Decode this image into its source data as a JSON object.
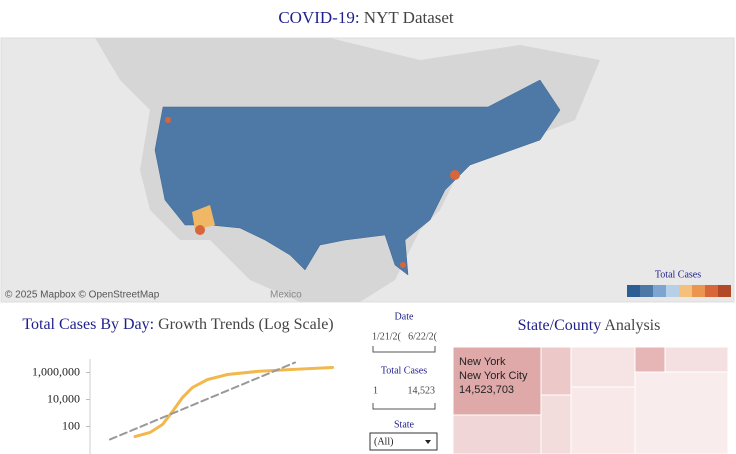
{
  "title": {
    "highlight": "COVID-19:",
    "rest": "NYT Dataset"
  },
  "map": {
    "attribution": "© 2025 Mapbox © OpenStreetMap",
    "place_label": "Mexico",
    "legend_title": "Total Cases"
  },
  "chart_data": {
    "type": "line",
    "title_highlight": "Total Cases By Day:",
    "title_rest": "Growth Trends (Log Scale)",
    "log_scale": true,
    "xlim": [
      0,
      100
    ],
    "ylim": [
      10,
      10000000
    ],
    "yticks": [
      {
        "value": 100,
        "label": "100"
      },
      {
        "value": 10000,
        "label": "10,000"
      },
      {
        "value": 1000000,
        "label": "1,000,000"
      }
    ],
    "series": [
      {
        "color": "#f2b84b",
        "x": [
          18,
          24,
          29,
          33,
          37,
          41,
          47,
          55,
          67,
          80,
          97
        ],
        "values": [
          18,
          36,
          140,
          1300,
          14000,
          78000,
          300000,
          710000,
          1200000,
          1650000,
          2350000
        ]
      },
      {
        "color": "#999999",
        "dashed": true,
        "x": [
          8,
          82
        ],
        "values": [
          11,
          5500000
        ]
      }
    ]
  },
  "filters": {
    "date_label": "Date",
    "date_start": "1/21/2(",
    "date_end": "6/22/2(",
    "cases_label": "Total Cases",
    "cases_min": "1",
    "cases_max": "14,523",
    "state_label": "State",
    "state_value": "(All)"
  },
  "treemap": {
    "title_highlight": "State/County",
    "title_rest": "Analysis",
    "state": "New York",
    "county": "New York City",
    "cases": "14,523,703"
  }
}
